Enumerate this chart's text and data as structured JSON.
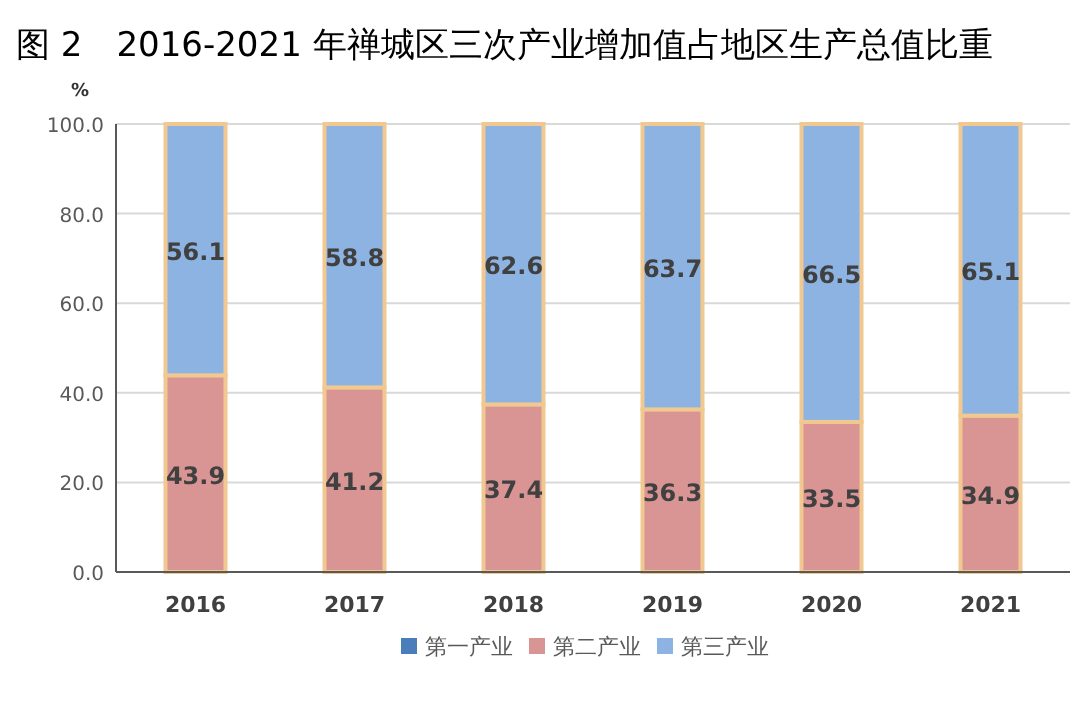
{
  "chart_data": {
    "type": "bar",
    "stacked": true,
    "title": "图 2　2016-2021 年禅城区三次产业增加值占地区生产总值比重",
    "ylabel": "%",
    "categories": [
      "2016",
      "2017",
      "2018",
      "2019",
      "2020",
      "2021"
    ],
    "series": [
      {
        "name": "第一产业",
        "color": "#4a7ebb",
        "values": [
          0,
          0,
          0,
          0,
          0,
          0
        ],
        "value_labels": [
          null,
          null,
          null,
          null,
          null,
          null
        ]
      },
      {
        "name": "第二产业",
        "color": "#d99594",
        "values": [
          43.9,
          41.2,
          37.4,
          36.3,
          33.5,
          34.9
        ],
        "value_labels": [
          "43.9",
          "41.2",
          "37.4",
          "36.3",
          "33.5",
          "34.9"
        ]
      },
      {
        "name": "第三产业",
        "color": "#8db3e2",
        "values": [
          56.1,
          58.8,
          62.6,
          63.7,
          66.5,
          65.1
        ],
        "value_labels": [
          "56.1",
          "58.8",
          "62.6",
          "63.7",
          "66.5",
          "65.1"
        ]
      }
    ],
    "ylim": [
      0,
      100
    ],
    "yticks": [
      {
        "value": 0,
        "label": "0.0"
      },
      {
        "value": 20,
        "label": "20.0"
      },
      {
        "value": 40,
        "label": "40.0"
      },
      {
        "value": 60,
        "label": "60.0"
      },
      {
        "value": 80,
        "label": "80.0"
      },
      {
        "value": 100,
        "label": "100.0"
      }
    ],
    "grid": "y",
    "legend": "bottom"
  }
}
